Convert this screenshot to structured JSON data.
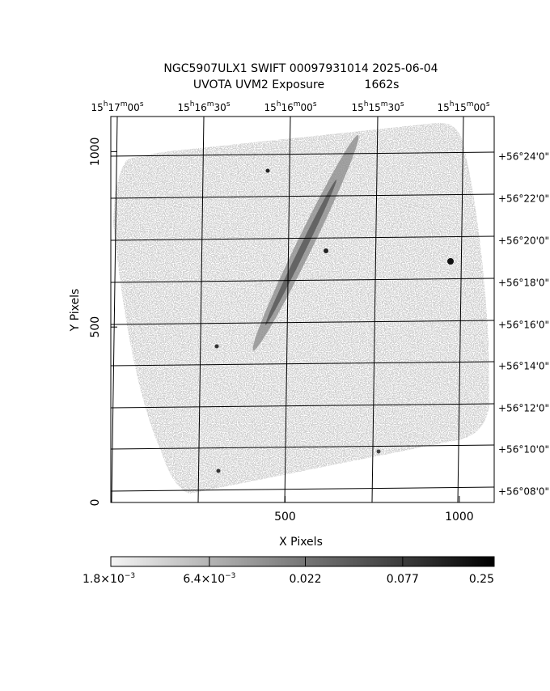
{
  "chart_data": {
    "type": "image",
    "title": "NGC5907ULX1 SWIFT 00097931014 2025-06-04",
    "subtitle": "UVOTA UVM2 Exposure",
    "exposure": "1662s",
    "xlabel": "X Pixels",
    "ylabel": "Y Pixels",
    "xlim": [
      0,
      1100
    ],
    "xticks": [
      500,
      1000
    ],
    "ylim": [
      0,
      1100
    ],
    "yticks": [
      0,
      500,
      1000
    ],
    "ra_labels": [
      "15h17m00s",
      "15h16m30s",
      "15h16m00s",
      "15h15m30s",
      "15h15m00s"
    ],
    "dec_labels": [
      "+56°24'0\"",
      "+56°22'0\"",
      "+56°20'0\"",
      "+56°18'0\"",
      "+56°16'0\"",
      "+56°14'0\"",
      "+56°12'0\"",
      "+56°10'0\"",
      "+56°08'0\""
    ],
    "colorbar": {
      "scale": "log",
      "lim": [
        0.0018,
        0.25
      ],
      "ticks": [
        {
          "value": 0.0018,
          "label": "1.8×10−3"
        },
        {
          "value": 0.0064,
          "label": "6.4×10−3"
        },
        0.022,
        0.077,
        0.25
      ]
    }
  }
}
